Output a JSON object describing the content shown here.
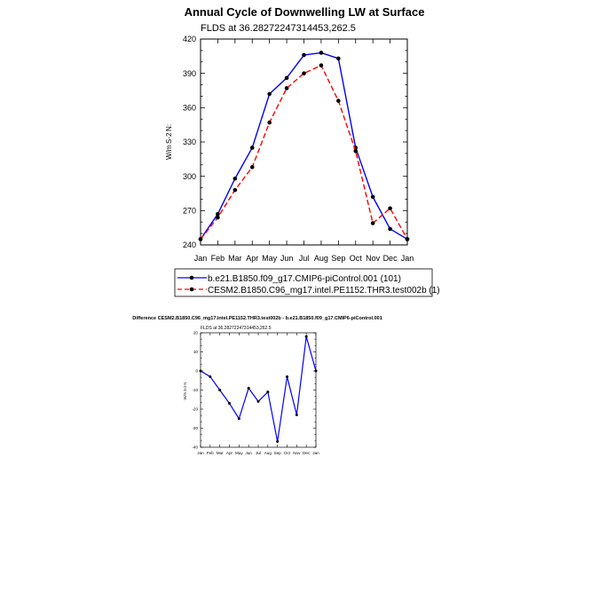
{
  "colors": {
    "series1": "#0000ff",
    "series2": "#ff0000",
    "marker": "#000000",
    "diff": "#0000ff"
  },
  "chart_data": [
    {
      "type": "line",
      "title": "Annual Cycle of Downwelling LW at Surface",
      "subtitle": "FLDS at 36.28272247314453,262.5",
      "xlabel": "",
      "ylabel": "W/m S-2 N:",
      "categories": [
        "Jan",
        "Feb",
        "Mar",
        "Apr",
        "May",
        "Jun",
        "Jul",
        "Aug",
        "Sep",
        "Oct",
        "Nov",
        "Dec",
        "Jan"
      ],
      "ylim": [
        240,
        420
      ],
      "yticks": [
        240,
        270,
        300,
        330,
        360,
        390,
        420
      ],
      "series": [
        {
          "name": "b.e21.B1850.f09_g17.CMIP6-piControl.001 (101)",
          "style": "solid",
          "values": [
            245,
            267,
            298,
            325,
            372,
            386,
            406,
            408,
            403,
            325,
            282,
            254,
            245
          ]
        },
        {
          "name": "CESM2.B1850.C96_mg17.intel.PE1152.THR3.test002b (1)",
          "style": "dashed",
          "values": [
            245,
            264,
            288,
            308,
            347,
            377,
            390,
            397,
            366,
            322,
            259,
            272,
            245
          ]
        }
      ]
    },
    {
      "type": "line",
      "title": "Difference CESM2.B1850.C96_mg17.intel.PE1152.THR3.test002b - b.e21.B1850.f09_g17.CMIP6-piControl.001",
      "subtitle": "FLDS at 36.28272247314453,262.5",
      "xlabel": "",
      "ylabel": "W/m S-2 N:",
      "categories": [
        "Jan",
        "Feb",
        "Mar",
        "Apr",
        "May",
        "Jun",
        "Jul",
        "Aug",
        "Sep",
        "Oct",
        "Nov",
        "Dec",
        "Jan"
      ],
      "ylim": [
        -40,
        20
      ],
      "yticks": [
        -40,
        -30,
        -20,
        -10,
        0,
        10,
        20
      ],
      "series": [
        {
          "name": "difference",
          "values": [
            0,
            -3,
            -10,
            -17,
            -25,
            -9,
            -16,
            -11,
            -37,
            -3,
            -23,
            18,
            0
          ]
        }
      ]
    }
  ]
}
